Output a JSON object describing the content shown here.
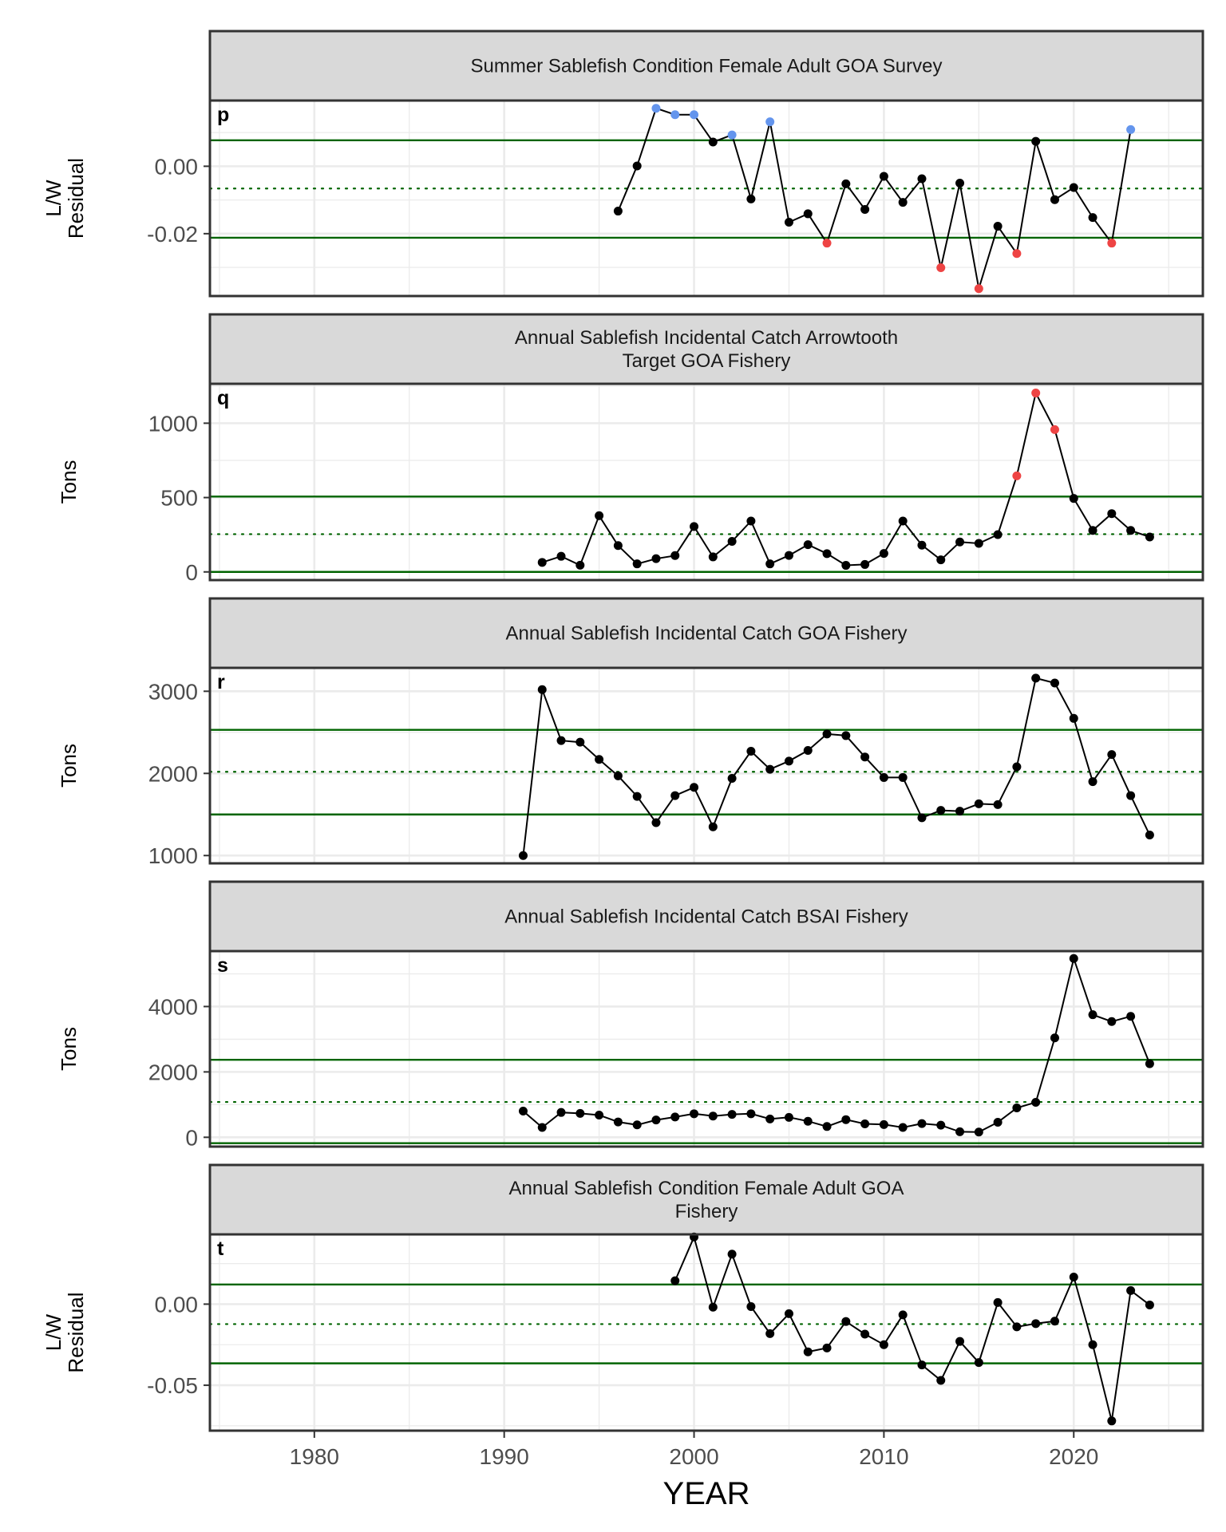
{
  "chart_data": {
    "type": "line",
    "xlabel": "YEAR",
    "x_range": [
      1974.5,
      2026.8
    ],
    "x_ticks": [
      1980,
      1990,
      2000,
      2010,
      2020
    ],
    "colors": {
      "line": "#000000",
      "point_normal": "#000000",
      "point_high": "#6495ED",
      "point_low": "#EE4444",
      "threshold_line": "#006400",
      "strip_fill": "#D9D9D9",
      "grid": "#EBEBEB"
    },
    "panels": [
      {
        "letter": "p",
        "title_lines": [
          "Summer Sablefish Condition Female Adult GOA Survey"
        ],
        "ylabel_lines": [
          "L/W",
          "Residual"
        ],
        "y_range": [
          -0.0385,
          0.0195
        ],
        "y_ticks": [
          -0.02,
          0.0
        ],
        "y_tick_labels": [
          "-0.02",
          "0.00"
        ],
        "mean": -0.0066,
        "upper": 0.0077,
        "lower": -0.0212,
        "series": [
          {
            "x": 1996,
            "y": -0.0133,
            "flag": "normal"
          },
          {
            "x": 1997,
            "y": 0.0001,
            "flag": "normal"
          },
          {
            "x": 1998,
            "y": 0.0172,
            "flag": "high"
          },
          {
            "x": 1999,
            "y": 0.0153,
            "flag": "high"
          },
          {
            "x": 2000,
            "y": 0.0153,
            "flag": "high"
          },
          {
            "x": 2001,
            "y": 0.0072,
            "flag": "normal"
          },
          {
            "x": 2002,
            "y": 0.0093,
            "flag": "high"
          },
          {
            "x": 2003,
            "y": -0.0097,
            "flag": "normal"
          },
          {
            "x": 2004,
            "y": 0.0132,
            "flag": "high"
          },
          {
            "x": 2005,
            "y": -0.0166,
            "flag": "normal"
          },
          {
            "x": 2006,
            "y": -0.0141,
            "flag": "normal"
          },
          {
            "x": 2007,
            "y": -0.0228,
            "flag": "low"
          },
          {
            "x": 2008,
            "y": -0.0052,
            "flag": "normal"
          },
          {
            "x": 2009,
            "y": -0.0128,
            "flag": "normal"
          },
          {
            "x": 2010,
            "y": -0.003,
            "flag": "normal"
          },
          {
            "x": 2011,
            "y": -0.0107,
            "flag": "normal"
          },
          {
            "x": 2012,
            "y": -0.0037,
            "flag": "normal"
          },
          {
            "x": 2013,
            "y": -0.0301,
            "flag": "low"
          },
          {
            "x": 2014,
            "y": -0.005,
            "flag": "normal"
          },
          {
            "x": 2015,
            "y": -0.0363,
            "flag": "low"
          },
          {
            "x": 2016,
            "y": -0.0178,
            "flag": "normal"
          },
          {
            "x": 2017,
            "y": -0.0259,
            "flag": "low"
          },
          {
            "x": 2018,
            "y": 0.0074,
            "flag": "normal"
          },
          {
            "x": 2019,
            "y": -0.0099,
            "flag": "normal"
          },
          {
            "x": 2020,
            "y": -0.0063,
            "flag": "normal"
          },
          {
            "x": 2021,
            "y": -0.0152,
            "flag": "normal"
          },
          {
            "x": 2022,
            "y": -0.0228,
            "flag": "low"
          },
          {
            "x": 2023,
            "y": 0.0109,
            "flag": "high"
          }
        ]
      },
      {
        "letter": "q",
        "title_lines": [
          "Annual Sablefish Incidental Catch Arrowtooth",
          "Target GOA Fishery"
        ],
        "ylabel_lines": [
          "Tons"
        ],
        "y_range": [
          -55,
          1265
        ],
        "y_ticks": [
          0,
          500,
          1000
        ],
        "y_tick_labels": [
          "0",
          "500",
          "1000"
        ],
        "mean": 254,
        "upper": 507,
        "lower": 0,
        "series": [
          {
            "x": 1992,
            "y": 64,
            "flag": "normal"
          },
          {
            "x": 1993,
            "y": 105,
            "flag": "normal"
          },
          {
            "x": 1994,
            "y": 45,
            "flag": "normal"
          },
          {
            "x": 1995,
            "y": 378,
            "flag": "normal"
          },
          {
            "x": 1996,
            "y": 177,
            "flag": "normal"
          },
          {
            "x": 1997,
            "y": 54,
            "flag": "normal"
          },
          {
            "x": 1998,
            "y": 89,
            "flag": "normal"
          },
          {
            "x": 1999,
            "y": 110,
            "flag": "normal"
          },
          {
            "x": 2000,
            "y": 305,
            "flag": "normal"
          },
          {
            "x": 2001,
            "y": 101,
            "flag": "normal"
          },
          {
            "x": 2002,
            "y": 205,
            "flag": "normal"
          },
          {
            "x": 2003,
            "y": 342,
            "flag": "normal"
          },
          {
            "x": 2004,
            "y": 54,
            "flag": "normal"
          },
          {
            "x": 2005,
            "y": 111,
            "flag": "normal"
          },
          {
            "x": 2006,
            "y": 183,
            "flag": "normal"
          },
          {
            "x": 2007,
            "y": 123,
            "flag": "normal"
          },
          {
            "x": 2008,
            "y": 44,
            "flag": "normal"
          },
          {
            "x": 2009,
            "y": 50,
            "flag": "normal"
          },
          {
            "x": 2010,
            "y": 124,
            "flag": "normal"
          },
          {
            "x": 2011,
            "y": 342,
            "flag": "normal"
          },
          {
            "x": 2012,
            "y": 180,
            "flag": "normal"
          },
          {
            "x": 2013,
            "y": 81,
            "flag": "normal"
          },
          {
            "x": 2014,
            "y": 201,
            "flag": "normal"
          },
          {
            "x": 2015,
            "y": 192,
            "flag": "normal"
          },
          {
            "x": 2016,
            "y": 251,
            "flag": "normal"
          },
          {
            "x": 2017,
            "y": 646,
            "flag": "low"
          },
          {
            "x": 2018,
            "y": 1203,
            "flag": "low"
          },
          {
            "x": 2019,
            "y": 957,
            "flag": "low"
          },
          {
            "x": 2020,
            "y": 494,
            "flag": "normal"
          },
          {
            "x": 2021,
            "y": 279,
            "flag": "normal"
          },
          {
            "x": 2022,
            "y": 392,
            "flag": "normal"
          },
          {
            "x": 2023,
            "y": 279,
            "flag": "normal"
          },
          {
            "x": 2024,
            "y": 235,
            "flag": "normal"
          }
        ]
      },
      {
        "letter": "r",
        "title_lines": [
          "Annual Sablefish Incidental Catch GOA Fishery"
        ],
        "ylabel_lines": [
          "Tons"
        ],
        "y_range": [
          905,
          3285
        ],
        "y_ticks": [
          1000,
          2000,
          3000
        ],
        "y_tick_labels": [
          "1000",
          "2000",
          "3000"
        ],
        "mean": 2020,
        "upper": 2530,
        "lower": 1500,
        "series": [
          {
            "x": 1991,
            "y": 1000,
            "flag": "normal"
          },
          {
            "x": 1992,
            "y": 3020,
            "flag": "normal"
          },
          {
            "x": 1993,
            "y": 2400,
            "flag": "normal"
          },
          {
            "x": 1994,
            "y": 2380,
            "flag": "normal"
          },
          {
            "x": 1995,
            "y": 2170,
            "flag": "normal"
          },
          {
            "x": 1996,
            "y": 1970,
            "flag": "normal"
          },
          {
            "x": 1997,
            "y": 1720,
            "flag": "normal"
          },
          {
            "x": 1998,
            "y": 1400,
            "flag": "normal"
          },
          {
            "x": 1999,
            "y": 1730,
            "flag": "normal"
          },
          {
            "x": 2000,
            "y": 1830,
            "flag": "normal"
          },
          {
            "x": 2001,
            "y": 1350,
            "flag": "normal"
          },
          {
            "x": 2002,
            "y": 1940,
            "flag": "normal"
          },
          {
            "x": 2003,
            "y": 2270,
            "flag": "normal"
          },
          {
            "x": 2004,
            "y": 2050,
            "flag": "normal"
          },
          {
            "x": 2005,
            "y": 2150,
            "flag": "normal"
          },
          {
            "x": 2006,
            "y": 2280,
            "flag": "normal"
          },
          {
            "x": 2007,
            "y": 2480,
            "flag": "normal"
          },
          {
            "x": 2008,
            "y": 2460,
            "flag": "normal"
          },
          {
            "x": 2009,
            "y": 2200,
            "flag": "normal"
          },
          {
            "x": 2010,
            "y": 1950,
            "flag": "normal"
          },
          {
            "x": 2011,
            "y": 1950,
            "flag": "normal"
          },
          {
            "x": 2012,
            "y": 1460,
            "flag": "normal"
          },
          {
            "x": 2013,
            "y": 1550,
            "flag": "normal"
          },
          {
            "x": 2014,
            "y": 1540,
            "flag": "normal"
          },
          {
            "x": 2015,
            "y": 1630,
            "flag": "normal"
          },
          {
            "x": 2016,
            "y": 1620,
            "flag": "normal"
          },
          {
            "x": 2017,
            "y": 2080,
            "flag": "normal"
          },
          {
            "x": 2018,
            "y": 3160,
            "flag": "normal"
          },
          {
            "x": 2019,
            "y": 3100,
            "flag": "normal"
          },
          {
            "x": 2020,
            "y": 2670,
            "flag": "normal"
          },
          {
            "x": 2021,
            "y": 1900,
            "flag": "normal"
          },
          {
            "x": 2022,
            "y": 2230,
            "flag": "normal"
          },
          {
            "x": 2023,
            "y": 1730,
            "flag": "normal"
          },
          {
            "x": 2024,
            "y": 1250,
            "flag": "normal"
          }
        ]
      },
      {
        "letter": "s",
        "title_lines": [
          "Annual Sablefish Incidental Catch BSAI Fishery"
        ],
        "ylabel_lines": [
          "Tons"
        ],
        "y_range": [
          -285,
          5695
        ],
        "y_ticks": [
          0,
          2000,
          4000
        ],
        "y_tick_labels": [
          "0",
          "2000",
          "4000"
        ],
        "mean": 1080,
        "upper": 2370,
        "lower": -180,
        "series": [
          {
            "x": 1991,
            "y": 800,
            "flag": "normal"
          },
          {
            "x": 1992,
            "y": 300,
            "flag": "normal"
          },
          {
            "x": 1993,
            "y": 760,
            "flag": "normal"
          },
          {
            "x": 1994,
            "y": 730,
            "flag": "normal"
          },
          {
            "x": 1995,
            "y": 680,
            "flag": "normal"
          },
          {
            "x": 1996,
            "y": 470,
            "flag": "normal"
          },
          {
            "x": 1997,
            "y": 380,
            "flag": "normal"
          },
          {
            "x": 1998,
            "y": 530,
            "flag": "normal"
          },
          {
            "x": 1999,
            "y": 620,
            "flag": "normal"
          },
          {
            "x": 2000,
            "y": 720,
            "flag": "normal"
          },
          {
            "x": 2001,
            "y": 650,
            "flag": "normal"
          },
          {
            "x": 2002,
            "y": 700,
            "flag": "normal"
          },
          {
            "x": 2003,
            "y": 720,
            "flag": "normal"
          },
          {
            "x": 2004,
            "y": 560,
            "flag": "normal"
          },
          {
            "x": 2005,
            "y": 610,
            "flag": "normal"
          },
          {
            "x": 2006,
            "y": 490,
            "flag": "normal"
          },
          {
            "x": 2007,
            "y": 330,
            "flag": "normal"
          },
          {
            "x": 2008,
            "y": 540,
            "flag": "normal"
          },
          {
            "x": 2009,
            "y": 410,
            "flag": "normal"
          },
          {
            "x": 2010,
            "y": 390,
            "flag": "normal"
          },
          {
            "x": 2011,
            "y": 300,
            "flag": "normal"
          },
          {
            "x": 2012,
            "y": 420,
            "flag": "normal"
          },
          {
            "x": 2013,
            "y": 370,
            "flag": "normal"
          },
          {
            "x": 2014,
            "y": 170,
            "flag": "normal"
          },
          {
            "x": 2015,
            "y": 160,
            "flag": "normal"
          },
          {
            "x": 2016,
            "y": 460,
            "flag": "normal"
          },
          {
            "x": 2017,
            "y": 900,
            "flag": "normal"
          },
          {
            "x": 2018,
            "y": 1070,
            "flag": "normal"
          },
          {
            "x": 2019,
            "y": 3040,
            "flag": "normal"
          },
          {
            "x": 2020,
            "y": 5470,
            "flag": "normal"
          },
          {
            "x": 2021,
            "y": 3750,
            "flag": "normal"
          },
          {
            "x": 2022,
            "y": 3540,
            "flag": "normal"
          },
          {
            "x": 2023,
            "y": 3700,
            "flag": "normal"
          },
          {
            "x": 2024,
            "y": 2250,
            "flag": "normal"
          }
        ]
      },
      {
        "letter": "t",
        "title_lines": [
          "Annual Sablefish Condition Female Adult GOA",
          "Fishery"
        ],
        "ylabel_lines": [
          "L/W",
          "Residual"
        ],
        "y_range": [
          -0.078,
          0.043
        ],
        "y_ticks": [
          -0.05,
          0.0
        ],
        "y_tick_labels": [
          "-0.05",
          "0.00"
        ],
        "mean": -0.0123,
        "upper": 0.0121,
        "lower": -0.0365,
        "series": [
          {
            "x": 1999,
            "y": 0.0144,
            "flag": "normal"
          },
          {
            "x": 2000,
            "y": 0.0414,
            "flag": "normal"
          },
          {
            "x": 2001,
            "y": -0.0019,
            "flag": "normal"
          },
          {
            "x": 2002,
            "y": 0.0308,
            "flag": "normal"
          },
          {
            "x": 2003,
            "y": -0.0015,
            "flag": "normal"
          },
          {
            "x": 2004,
            "y": -0.0182,
            "flag": "normal"
          },
          {
            "x": 2005,
            "y": -0.0059,
            "flag": "normal"
          },
          {
            "x": 2006,
            "y": -0.0294,
            "flag": "normal"
          },
          {
            "x": 2007,
            "y": -0.027,
            "flag": "normal"
          },
          {
            "x": 2008,
            "y": -0.0107,
            "flag": "normal"
          },
          {
            "x": 2009,
            "y": -0.0185,
            "flag": "normal"
          },
          {
            "x": 2010,
            "y": -0.025,
            "flag": "normal"
          },
          {
            "x": 2011,
            "y": -0.0066,
            "flag": "normal"
          },
          {
            "x": 2012,
            "y": -0.0375,
            "flag": "normal"
          },
          {
            "x": 2013,
            "y": -0.047,
            "flag": "normal"
          },
          {
            "x": 2014,
            "y": -0.023,
            "flag": "normal"
          },
          {
            "x": 2015,
            "y": -0.036,
            "flag": "normal"
          },
          {
            "x": 2016,
            "y": 0.001,
            "flag": "normal"
          },
          {
            "x": 2017,
            "y": -0.014,
            "flag": "normal"
          },
          {
            "x": 2018,
            "y": -0.012,
            "flag": "normal"
          },
          {
            "x": 2019,
            "y": -0.0105,
            "flag": "normal"
          },
          {
            "x": 2020,
            "y": 0.0167,
            "flag": "normal"
          },
          {
            "x": 2021,
            "y": -0.025,
            "flag": "normal"
          },
          {
            "x": 2022,
            "y": -0.072,
            "flag": "normal"
          },
          {
            "x": 2023,
            "y": 0.0084,
            "flag": "normal"
          },
          {
            "x": 2024,
            "y": -0.0005,
            "flag": "normal"
          }
        ]
      }
    ]
  }
}
